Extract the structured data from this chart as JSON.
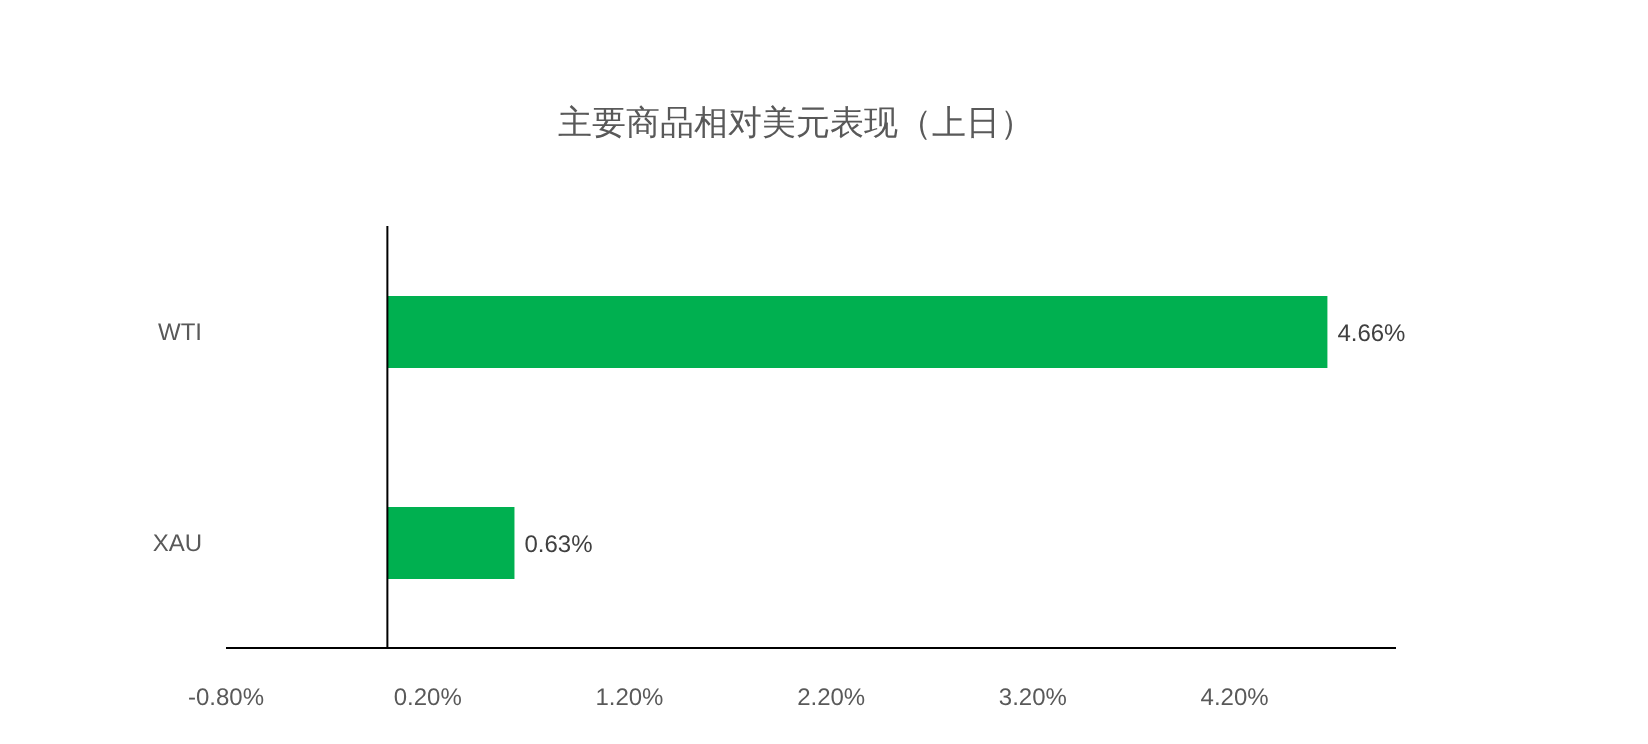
{
  "chart_data": {
    "type": "bar",
    "orientation": "horizontal",
    "title": "主要商品相对美元表现（上日）",
    "categories": [
      "WTI",
      "XAU"
    ],
    "values": [
      4.66,
      0.63
    ],
    "value_labels": [
      "4.66%",
      "0.63%"
    ],
    "color": "#00b050",
    "xlim": [
      -0.8,
      5.0
    ],
    "xticks": [
      {
        "value": -0.8,
        "label": "-0.80%"
      },
      {
        "value": 0.2,
        "label": "0.20%"
      },
      {
        "value": 1.2,
        "label": "1.20%"
      },
      {
        "value": 2.2,
        "label": "2.20%"
      },
      {
        "value": 3.2,
        "label": "3.20%"
      },
      {
        "value": 4.2,
        "label": "4.20%"
      }
    ],
    "ref_lines": [
      {
        "axis": "x",
        "value": 0,
        "color": "#000000"
      }
    ]
  }
}
